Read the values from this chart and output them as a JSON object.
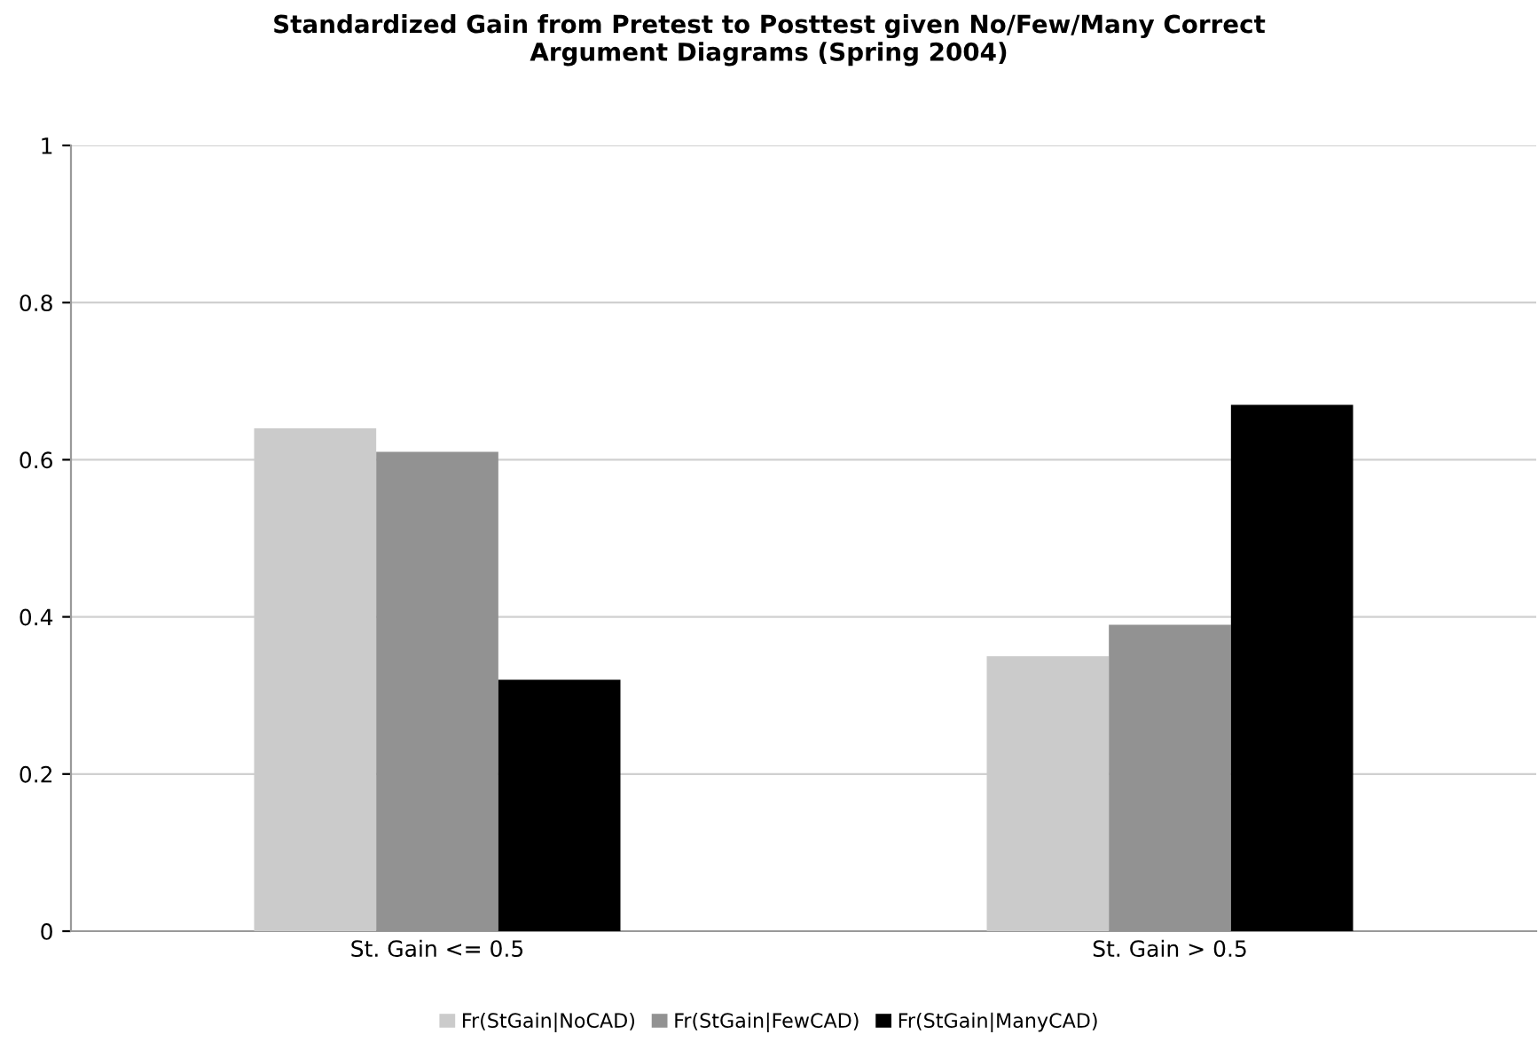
{
  "chart_data": {
    "type": "bar",
    "title": "Standardized Gain from Pretest to Posttest given No/Few/Many Correct\nArgument Diagrams (Spring 2004)",
    "categories": [
      "St. Gain <= 0.5",
      "St. Gain > 0.5"
    ],
    "series": [
      {
        "name": "Fr(StGain|NoCAD)",
        "color": "#cbcbcb",
        "values": [
          0.64,
          0.35
        ]
      },
      {
        "name": "Fr(StGain|FewCAD)",
        "color": "#929292",
        "values": [
          0.61,
          0.39
        ]
      },
      {
        "name": "Fr(StGain|ManyCAD)",
        "color": "#000000",
        "values": [
          0.32,
          0.67
        ]
      }
    ],
    "ylim": [
      0,
      1
    ],
    "yticks": [
      0,
      0.2,
      0.4,
      0.6,
      0.8,
      1
    ],
    "grid": "y",
    "legend": "bottom"
  }
}
